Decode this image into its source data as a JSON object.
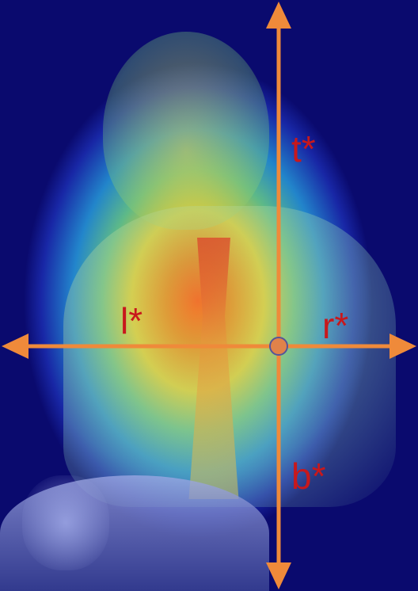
{
  "labels": {
    "top": "t*",
    "left": "l*",
    "right": "r*",
    "bottom": "b*"
  },
  "colors": {
    "arrow": "#ef8a3a",
    "label": "#c8181c",
    "center_dot_fill": "#e0824a",
    "center_dot_stroke": "#555599"
  },
  "image": {
    "subject": "child-heatmap-photo"
  }
}
